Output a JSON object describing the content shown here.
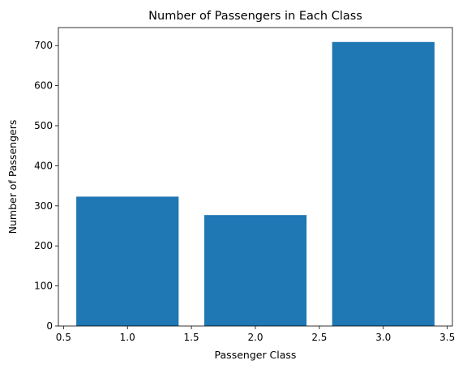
{
  "chart_data": {
    "type": "bar",
    "title": "Number of Passengers in Each Class",
    "xlabel": "Passenger Class",
    "ylabel": "Number of Passengers",
    "x": [
      1,
      2,
      3
    ],
    "values": [
      323,
      277,
      709
    ],
    "bar_width": 0.8,
    "xlim": [
      0.46,
      3.54
    ],
    "ylim": [
      0,
      745
    ],
    "xticks": [
      0.5,
      1.0,
      1.5,
      2.0,
      2.5,
      3.0,
      3.5
    ],
    "xtick_labels": [
      "0.5",
      "1.0",
      "1.5",
      "2.0",
      "2.5",
      "3.0",
      "3.5"
    ],
    "yticks": [
      0,
      100,
      200,
      300,
      400,
      500,
      600,
      700
    ],
    "ytick_labels": [
      "0",
      "100",
      "200",
      "300",
      "400",
      "500",
      "600",
      "700"
    ],
    "grid": false,
    "bar_color": "#1f77b4"
  }
}
